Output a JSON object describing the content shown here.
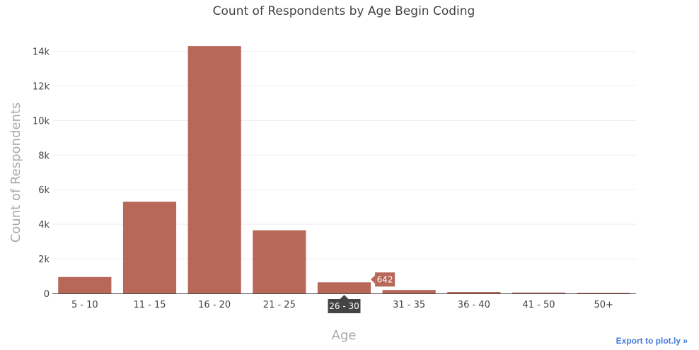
{
  "export_link_label": "Export to plot.ly »",
  "colors": {
    "bar": "#b76859",
    "grid": "#eeeeee",
    "axis_line": "#444444",
    "hover_x_bg": "#444444",
    "hover_y_bg": "#b76859"
  },
  "chart_data": {
    "type": "bar",
    "title": "Count of Respondents by Age Begin Coding",
    "xlabel": "Age",
    "ylabel": "Count of Respondents",
    "categories": [
      "5 - 10",
      "11 - 15",
      "16 - 20",
      "21 - 25",
      "26 - 30",
      "31 - 35",
      "36 - 40",
      "41 - 50",
      "50+"
    ],
    "values": [
      950,
      5300,
      14300,
      3650,
      642,
      200,
      80,
      50,
      20
    ],
    "ylim": [
      0,
      15000
    ],
    "y_ticks": [
      0,
      2000,
      4000,
      6000,
      8000,
      10000,
      12000,
      14000
    ],
    "y_tick_labels": [
      "0",
      "2k",
      "4k",
      "6k",
      "8k",
      "10k",
      "12k",
      "14k"
    ],
    "grid": true,
    "hover": {
      "category": "26 - 30",
      "x_label": "26 - 30",
      "y_label": "642"
    }
  }
}
